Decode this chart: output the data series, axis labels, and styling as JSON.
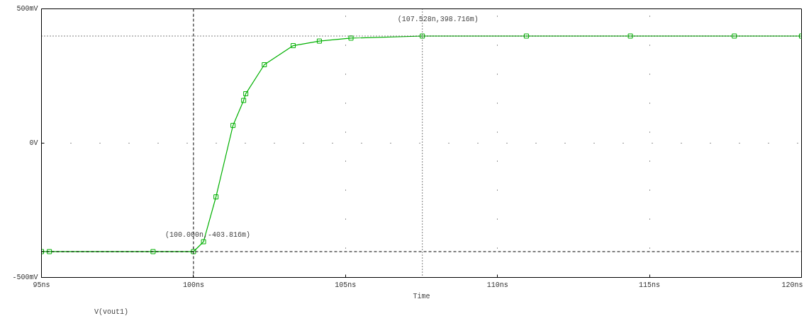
{
  "chart_data": {
    "type": "line",
    "xlabel": "Time",
    "x": [
      95,
      95.26,
      98.67,
      100,
      100.33,
      100.74,
      101.3,
      101.65,
      101.72,
      102.33,
      103.28,
      104.14,
      105.18,
      107.528,
      110.95,
      114.37,
      117.79,
      120
    ],
    "series": [
      {
        "name": "V(vout1)",
        "color": "#00b000",
        "values": [
          -403.816,
          -403.816,
          -403.816,
          -403.816,
          -367,
          -200,
          66,
          159,
          184,
          292,
          363,
          380,
          391,
          398.716,
          398.716,
          398.716,
          398.716,
          398.716
        ]
      }
    ],
    "xlim": [
      95,
      120
    ],
    "xticks": [
      {
        "value": 95,
        "label": "95ns"
      },
      {
        "value": 100,
        "label": "100ns"
      },
      {
        "value": 105,
        "label": "105ns"
      },
      {
        "value": 110,
        "label": "110ns"
      },
      {
        "value": 115,
        "label": "115ns"
      },
      {
        "value": 120,
        "label": "120ns"
      }
    ],
    "ylim": [
      -500,
      500
    ],
    "yticks": [
      {
        "value": -500,
        "label": "-500mV"
      },
      {
        "value": 0,
        "label": "0V"
      },
      {
        "value": 500,
        "label": "500mV"
      }
    ],
    "grid": true,
    "legend": "bottom left",
    "marker": "square",
    "line_style": "solid",
    "ref_lines": [
      {
        "axis": "x",
        "value": 100,
        "label": null,
        "line_style": "dashed",
        "color": "#000000"
      },
      {
        "axis": "y",
        "value": -403.816,
        "label": null,
        "line_style": "dashed",
        "color": "#000000"
      },
      {
        "axis": "x",
        "value": 107.528,
        "label": null,
        "line_style": "dotted",
        "color": "#000000"
      },
      {
        "axis": "y",
        "value": 398.716,
        "label": null,
        "line_style": "dotted",
        "color": "#000000"
      }
    ],
    "annotations": [
      {
        "text": "(100.000n,-403.816m)",
        "x": 100,
        "y": -403.816
      },
      {
        "text": "(107.528n,398.716m)",
        "x": 107.528,
        "y": 398.716
      }
    ]
  }
}
